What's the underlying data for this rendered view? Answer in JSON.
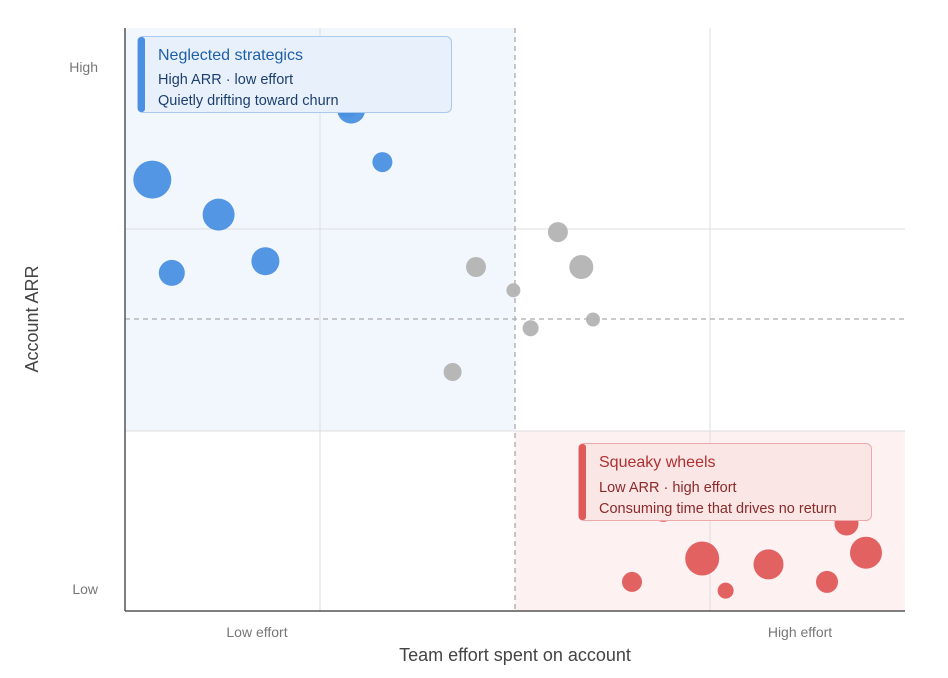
{
  "chart_data": {
    "type": "scatter",
    "subtype": "bubble",
    "title": "",
    "xlabel": "Team effort spent on account",
    "ylabel": "Account ARR",
    "xlim": [
      0,
      100
    ],
    "ylim": [
      0,
      100
    ],
    "x_ticks": [
      {
        "value": 17,
        "label": "Low effort"
      },
      {
        "value": 86,
        "label": "High effort"
      }
    ],
    "y_ticks": [
      {
        "value": 93,
        "label": "High"
      },
      {
        "value": 4,
        "label": "Low"
      }
    ],
    "grid": true,
    "quadrant_split": {
      "x": 50,
      "y": 50
    },
    "colors": {
      "strategic": "#4a90e2",
      "neutral": "#b3b3b3",
      "squeaky": "#e05a5a",
      "strategic_zone": "#f2f7fd",
      "squeaky_zone": "#fdf1f1",
      "axis": "#555555",
      "grid": "#dddddd",
      "split": "#aaaaaa"
    },
    "series": [
      {
        "group": "strategic",
        "points": [
          {
            "x": 29,
            "y": 86,
            "size": 14
          },
          {
            "x": 3.5,
            "y": 74,
            "size": 19
          },
          {
            "x": 12,
            "y": 68,
            "size": 16
          },
          {
            "x": 6,
            "y": 58,
            "size": 13
          },
          {
            "x": 18,
            "y": 60,
            "size": 14
          },
          {
            "x": 28.5,
            "y": 86.5,
            "size": 11
          },
          {
            "x": 33,
            "y": 77,
            "size": 10
          }
        ]
      },
      {
        "group": "neutral",
        "points": [
          {
            "x": 45,
            "y": 59,
            "size": 10
          },
          {
            "x": 42,
            "y": 41,
            "size": 9
          },
          {
            "x": 52,
            "y": 48.5,
            "size": 8
          },
          {
            "x": 55.5,
            "y": 65,
            "size": 10
          },
          {
            "x": 58.5,
            "y": 59,
            "size": 12
          },
          {
            "x": 60,
            "y": 50,
            "size": 7
          },
          {
            "x": 49.8,
            "y": 55,
            "size": 7
          }
        ]
      },
      {
        "group": "squeaky",
        "points": [
          {
            "x": 69,
            "y": 17,
            "size": 10
          },
          {
            "x": 74,
            "y": 9,
            "size": 17
          },
          {
            "x": 65,
            "y": 5,
            "size": 10
          },
          {
            "x": 77,
            "y": 3.5,
            "size": 8
          },
          {
            "x": 82.5,
            "y": 8,
            "size": 15
          },
          {
            "x": 90,
            "y": 5,
            "size": 11
          },
          {
            "x": 92.5,
            "y": 15,
            "size": 12
          },
          {
            "x": 95,
            "y": 10,
            "size": 16
          }
        ]
      }
    ],
    "annotations": [
      {
        "quadrant": "top-left",
        "color": "strategic",
        "title": "Neglected strategics",
        "lines": [
          "High ARR · low effort",
          "Quietly drifting toward churn"
        ]
      },
      {
        "quadrant": "bottom-right",
        "color": "squeaky",
        "title": "Squeaky wheels",
        "lines": [
          "Low ARR · high effort",
          "Consuming time that drives no return"
        ]
      }
    ]
  }
}
